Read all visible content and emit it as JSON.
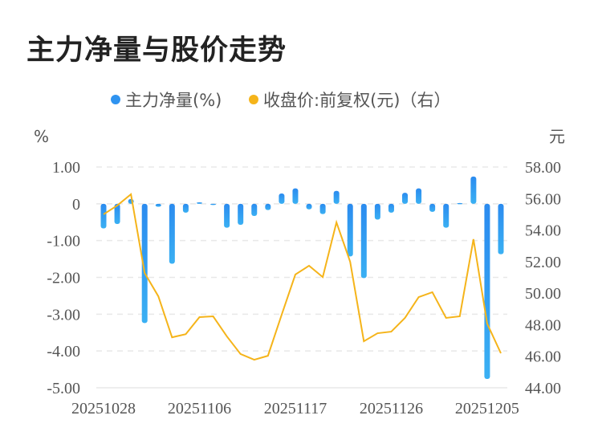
{
  "title": "主力净量与股价走势",
  "chart_data": {
    "type": "bar+line",
    "title": "主力净量与股价走势",
    "legend_position": "top",
    "grid": true,
    "left_axis": {
      "label": "%",
      "ylim": [
        -5,
        1
      ],
      "ticks": [
        "1.00",
        "0",
        "-1.00",
        "-2.00",
        "-3.00",
        "-4.00",
        "-5.00"
      ]
    },
    "right_axis": {
      "label": "元",
      "ylim": [
        44,
        58
      ],
      "ticks": [
        "58.00",
        "56.00",
        "54.00",
        "52.00",
        "50.00",
        "48.00",
        "46.00",
        "44.00"
      ]
    },
    "x_tick_labels": [
      "20251028",
      "20251106",
      "20251117",
      "20251126",
      "20251205"
    ],
    "x_tick_indices": [
      0,
      7,
      14,
      21,
      28
    ],
    "series": [
      {
        "name": "主力净量(%)",
        "type": "bar",
        "axis": "left",
        "color": "#2F93F0",
        "values": [
          -0.67,
          -0.55,
          0.13,
          -3.24,
          -0.08,
          -1.63,
          -0.24,
          0.04,
          -0.01,
          -0.65,
          -0.57,
          -0.33,
          -0.17,
          0.28,
          0.42,
          -0.15,
          -0.28,
          0.35,
          -1.43,
          -2.02,
          -0.43,
          -0.24,
          0.3,
          0.42,
          -0.22,
          -0.65,
          0.02,
          0.74,
          -4.76,
          -1.37
        ]
      },
      {
        "name": "收盘价:前复权(元)（右）",
        "type": "line",
        "axis": "right",
        "color": "#F5B41A",
        "values": [
          55.0,
          55.56,
          56.27,
          51.28,
          49.8,
          47.2,
          47.4,
          48.48,
          48.53,
          47.26,
          46.14,
          45.78,
          46.03,
          48.63,
          51.18,
          51.74,
          51.02,
          54.49,
          51.99,
          46.95,
          47.46,
          47.56,
          48.43,
          49.75,
          50.06,
          48.43,
          48.53,
          53.42,
          48.07,
          46.19
        ]
      }
    ]
  }
}
